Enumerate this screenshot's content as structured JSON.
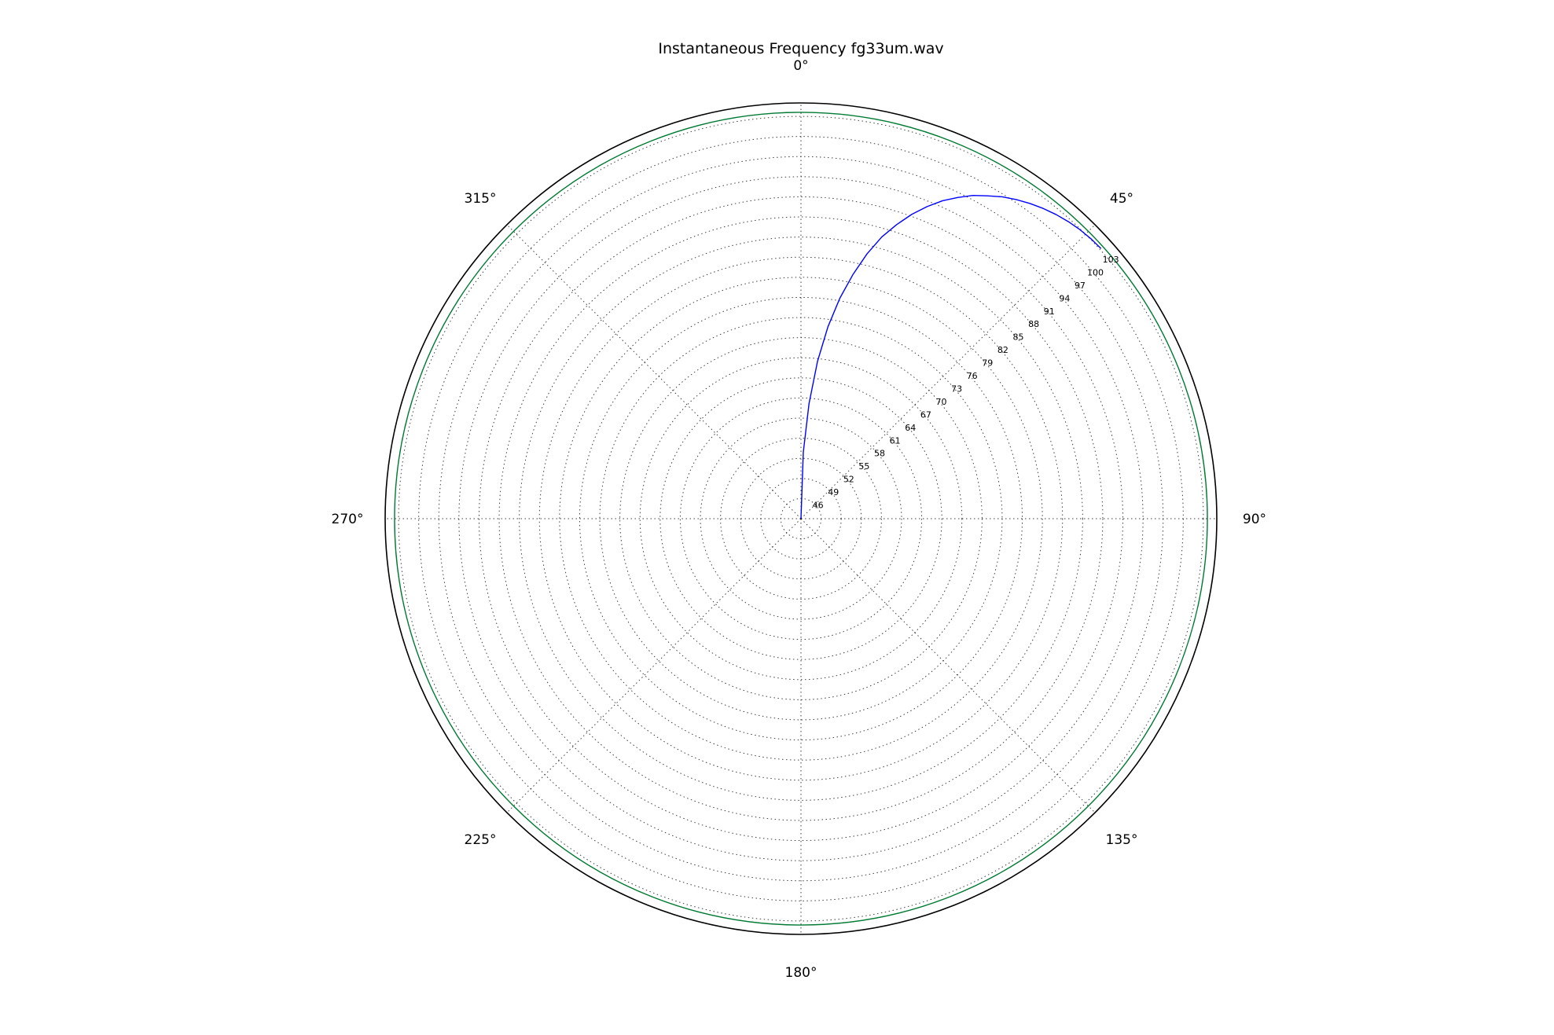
{
  "chart_data": {
    "type": "polar-line",
    "title": "Instantaneous Frequency  fg33um.wav",
    "theta_direction": "clockwise",
    "theta_zero_location": "top",
    "angle_ticks": [
      {
        "deg": 0,
        "label": "0°"
      },
      {
        "deg": 45,
        "label": "45°"
      },
      {
        "deg": 90,
        "label": "90°"
      },
      {
        "deg": 135,
        "label": "135°"
      },
      {
        "deg": 180,
        "label": "180°"
      },
      {
        "deg": 225,
        "label": "225°"
      },
      {
        "deg": 270,
        "label": "270°"
      },
      {
        "deg": 315,
        "label": "315°"
      }
    ],
    "r_range": [
      43,
      105
    ],
    "r_ticks": [
      46,
      49,
      52,
      55,
      58,
      61,
      64,
      67,
      70,
      73,
      76,
      79,
      82,
      85,
      88,
      91,
      94,
      97,
      100,
      103
    ],
    "r_tick_label_angle_deg": 50,
    "grid": true,
    "series": [
      {
        "color": "#0000ff",
        "theta_deg": [
          0,
          2,
          4,
          6,
          8,
          10,
          12,
          14,
          16,
          18,
          20,
          22,
          24,
          26,
          28,
          30,
          32,
          34,
          36,
          38,
          40,
          42,
          44,
          46,
          48
        ],
        "r": [
          43.0,
          52.9,
          60.2,
          66.6,
          71.9,
          76.4,
          80.2,
          83.7,
          86.7,
          89.1,
          91.3,
          93.2,
          94.9,
          96.3,
          97.6,
          98.6,
          99.6,
          100.4,
          101.1,
          101.7,
          102.2,
          102.6,
          102.9,
          103.1,
          103.2
        ]
      },
      {
        "color": "#007a33",
        "r_constant": 103.6,
        "theta_deg_range": [
          0,
          360
        ]
      }
    ]
  }
}
